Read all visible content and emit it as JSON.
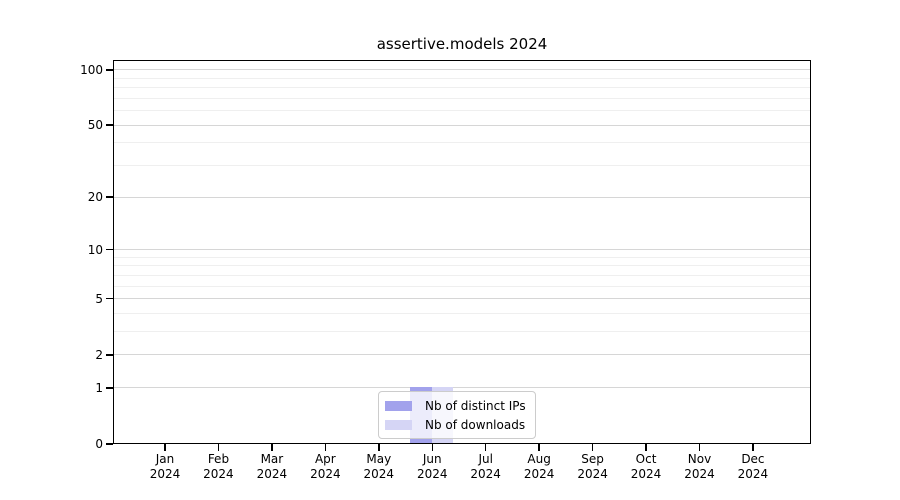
{
  "figure": {
    "background": "#ffffff"
  },
  "chart_data": {
    "type": "bar",
    "title": "assertive.models 2024",
    "categories": [
      "Jan 2024",
      "Feb 2024",
      "Mar 2024",
      "Apr 2024",
      "May 2024",
      "Jun 2024",
      "Jul 2024",
      "Aug 2024",
      "Sep 2024",
      "Oct 2024",
      "Nov 2024",
      "Dec 2024"
    ],
    "series": [
      {
        "name": "Nb of distinct IPs",
        "color": "#a2a2ec",
        "values": [
          0,
          0,
          0,
          0,
          0,
          1,
          0,
          0,
          0,
          0,
          0,
          0
        ]
      },
      {
        "name": "Nb of downloads",
        "color": "#d5d5f5",
        "values": [
          0,
          0,
          0,
          0,
          0,
          1,
          0,
          0,
          0,
          0,
          0,
          0
        ]
      }
    ],
    "yscale": "log1p",
    "ylim": [
      0,
      113
    ],
    "yticks": [
      0,
      1,
      2,
      5,
      10,
      20,
      50,
      100
    ],
    "yticks_minor": [
      3,
      4,
      6,
      7,
      8,
      9,
      30,
      40,
      60,
      70,
      80,
      90
    ],
    "grid": "horizontal",
    "legend_position": "bottom-center",
    "colors": {
      "major_grid": "#d6d6d6",
      "minor_grid": "#efefef",
      "spine": "#000000",
      "text": "#000000",
      "legend_border": "#cccccc"
    }
  }
}
